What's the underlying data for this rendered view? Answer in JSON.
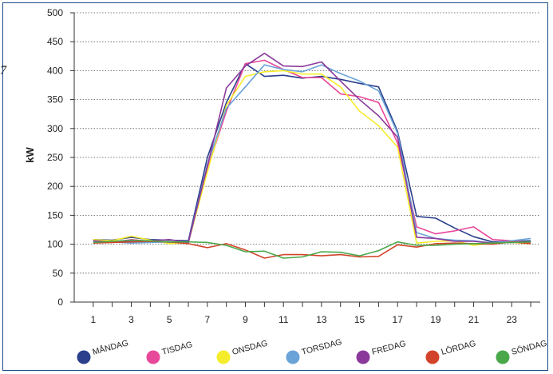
{
  "chart_data": {
    "type": "line",
    "ylabel": "kW",
    "xlabel": "",
    "ylim": [
      0,
      500
    ],
    "yticks": [
      0,
      50,
      100,
      150,
      200,
      250,
      300,
      350,
      400,
      450,
      500
    ],
    "xlim": [
      0,
      24.5
    ],
    "xticks": [
      1,
      3,
      5,
      7,
      9,
      11,
      13,
      15,
      17,
      19,
      21,
      23
    ],
    "grid": "horizontal-dotted",
    "legend_position": "bottom",
    "x": [
      1,
      2,
      3,
      4,
      5,
      6,
      7,
      8,
      9,
      10,
      11,
      12,
      13,
      14,
      15,
      16,
      17,
      18,
      19,
      20,
      21,
      22,
      23,
      24
    ],
    "series": [
      {
        "name": "MÅNDAG",
        "color": "#2b3f8c",
        "values": [
          108,
          107,
          112,
          108,
          107,
          106,
          250,
          345,
          412,
          390,
          392,
          387,
          390,
          385,
          378,
          372,
          295,
          148,
          145,
          128,
          113,
          104,
          105,
          106
        ]
      },
      {
        "name": "TISDAG",
        "color": "#e8489a",
        "values": [
          107,
          103,
          108,
          105,
          103,
          102,
          230,
          330,
          412,
          418,
          402,
          388,
          388,
          360,
          355,
          345,
          275,
          130,
          118,
          123,
          130,
          108,
          106,
          103
        ]
      },
      {
        "name": "ONSDAG",
        "color": "#f5ec2c",
        "values": [
          108,
          106,
          114,
          107,
          101,
          103,
          225,
          340,
          390,
          398,
          400,
          394,
          394,
          372,
          330,
          305,
          268,
          102,
          105,
          106,
          98,
          102,
          103,
          101
        ]
      },
      {
        "name": "TORSDAG",
        "color": "#6aa3d8",
        "values": [
          105,
          104,
          102,
          103,
          104,
          103,
          238,
          335,
          372,
          410,
          402,
          398,
          410,
          395,
          382,
          365,
          292,
          120,
          110,
          107,
          106,
          102,
          106,
          110
        ]
      },
      {
        "name": "FREDAG",
        "color": "#8b3a9c",
        "values": [
          106,
          104,
          105,
          106,
          108,
          103,
          235,
          370,
          408,
          430,
          408,
          407,
          415,
          382,
          350,
          322,
          285,
          112,
          110,
          105,
          105,
          102,
          103,
          104
        ]
      },
      {
        "name": "LÖRDAG",
        "color": "#d2442a",
        "values": [
          102,
          103,
          104,
          105,
          104,
          101,
          94,
          101,
          90,
          76,
          82,
          82,
          80,
          82,
          78,
          79,
          99,
          95,
          101,
          102,
          101,
          100,
          104,
          101
        ]
      },
      {
        "name": "SÖNDAG",
        "color": "#4aa84a",
        "values": [
          103,
          105,
          107,
          106,
          104,
          104,
          103,
          98,
          87,
          88,
          76,
          78,
          87,
          86,
          80,
          89,
          104,
          98,
          98,
          100,
          101,
          102,
          103,
          104
        ]
      }
    ]
  },
  "artifact_text": "7"
}
